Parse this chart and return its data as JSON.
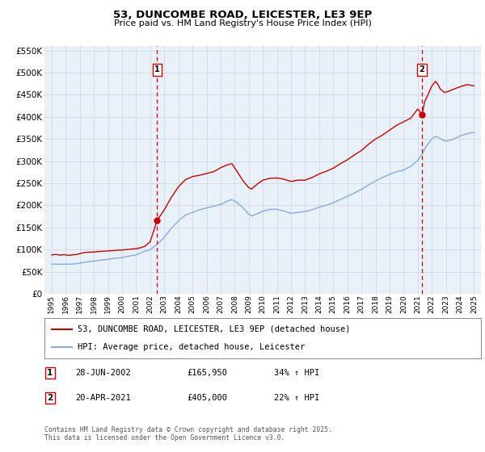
{
  "title": "53, DUNCOMBE ROAD, LEICESTER, LE3 9EP",
  "subtitle": "Price paid vs. HM Land Registry's House Price Index (HPI)",
  "ylim": [
    0,
    560000
  ],
  "yticks": [
    0,
    50000,
    100000,
    150000,
    200000,
    250000,
    300000,
    350000,
    400000,
    450000,
    500000,
    550000
  ],
  "ytick_labels": [
    "£0",
    "£50K",
    "£100K",
    "£150K",
    "£200K",
    "£250K",
    "£300K",
    "£350K",
    "£400K",
    "£450K",
    "£500K",
    "£550K"
  ],
  "xlim": [
    1994.5,
    2025.5
  ],
  "xticks": [
    1995,
    1996,
    1997,
    1998,
    1999,
    2000,
    2001,
    2002,
    2003,
    2004,
    2005,
    2006,
    2007,
    2008,
    2009,
    2010,
    2011,
    2012,
    2013,
    2014,
    2015,
    2016,
    2017,
    2018,
    2019,
    2020,
    2021,
    2022,
    2023,
    2024,
    2025
  ],
  "red_line_color": "#cc0000",
  "blue_line_color": "#88aadd",
  "grid_color": "#d0dce8",
  "background_color": "#ffffff",
  "plot_bg_color": "#e8f0f8",
  "marker1_x": 2002.49,
  "marker1_y": 165950,
  "marker2_x": 2021.3,
  "marker2_y": 405000,
  "vline1_x": 2002.49,
  "vline2_x": 2021.3,
  "legend_label_red": "53, DUNCOMBE ROAD, LEICESTER, LE3 9EP (detached house)",
  "legend_label_blue": "HPI: Average price, detached house, Leicester",
  "table_row1": [
    "1",
    "28-JUN-2002",
    "£165,950",
    "34% ↑ HPI"
  ],
  "table_row2": [
    "2",
    "20-APR-2021",
    "£405,000",
    "22% ↑ HPI"
  ],
  "footer": "Contains HM Land Registry data © Crown copyright and database right 2025.\nThis data is licensed under the Open Government Licence v3.0.",
  "red_data": [
    [
      1995.0,
      88000
    ],
    [
      1995.3,
      89000
    ],
    [
      1995.6,
      87500
    ],
    [
      1995.9,
      88500
    ],
    [
      1996.2,
      87000
    ],
    [
      1996.5,
      88000
    ],
    [
      1996.8,
      89000
    ],
    [
      1997.0,
      91000
    ],
    [
      1997.3,
      93000
    ],
    [
      1997.6,
      94000
    ],
    [
      1998.0,
      94500
    ],
    [
      1998.3,
      95500
    ],
    [
      1998.6,
      96000
    ],
    [
      1999.0,
      97000
    ],
    [
      1999.3,
      97500
    ],
    [
      1999.6,
      98500
    ],
    [
      2000.0,
      99000
    ],
    [
      2000.3,
      100000
    ],
    [
      2000.6,
      101000
    ],
    [
      2001.0,
      102000
    ],
    [
      2001.3,
      104000
    ],
    [
      2001.6,
      107000
    ],
    [
      2002.0,
      118000
    ],
    [
      2002.49,
      165950
    ],
    [
      2003.0,
      190000
    ],
    [
      2003.5,
      218000
    ],
    [
      2004.0,
      242000
    ],
    [
      2004.5,
      258000
    ],
    [
      2005.0,
      265000
    ],
    [
      2005.5,
      268000
    ],
    [
      2006.0,
      272000
    ],
    [
      2006.5,
      276000
    ],
    [
      2007.0,
      285000
    ],
    [
      2007.5,
      292000
    ],
    [
      2007.8,
      294000
    ],
    [
      2008.2,
      275000
    ],
    [
      2008.6,
      255000
    ],
    [
      2009.0,
      240000
    ],
    [
      2009.2,
      237000
    ],
    [
      2009.6,
      248000
    ],
    [
      2010.0,
      257000
    ],
    [
      2010.5,
      261000
    ],
    [
      2011.0,
      262000
    ],
    [
      2011.5,
      259000
    ],
    [
      2012.0,
      254000
    ],
    [
      2012.5,
      257000
    ],
    [
      2013.0,
      257000
    ],
    [
      2013.5,
      263000
    ],
    [
      2014.0,
      271000
    ],
    [
      2014.5,
      277000
    ],
    [
      2015.0,
      284000
    ],
    [
      2015.5,
      294000
    ],
    [
      2016.0,
      303000
    ],
    [
      2016.5,
      314000
    ],
    [
      2017.0,
      324000
    ],
    [
      2017.5,
      338000
    ],
    [
      2018.0,
      350000
    ],
    [
      2018.5,
      359000
    ],
    [
      2019.0,
      370000
    ],
    [
      2019.5,
      381000
    ],
    [
      2020.0,
      389000
    ],
    [
      2020.5,
      397000
    ],
    [
      2021.0,
      418000
    ],
    [
      2021.3,
      405000
    ],
    [
      2021.5,
      435000
    ],
    [
      2021.75,
      452000
    ],
    [
      2022.0,
      470000
    ],
    [
      2022.25,
      480000
    ],
    [
      2022.4,
      475000
    ],
    [
      2022.6,
      463000
    ],
    [
      2022.9,
      455000
    ],
    [
      2023.2,
      458000
    ],
    [
      2023.5,
      462000
    ],
    [
      2024.0,
      468000
    ],
    [
      2024.5,
      473000
    ],
    [
      2025.0,
      470000
    ]
  ],
  "blue_data": [
    [
      1995.0,
      67000
    ],
    [
      1995.3,
      67200
    ],
    [
      1995.6,
      66800
    ],
    [
      1995.9,
      67100
    ],
    [
      1996.2,
      66900
    ],
    [
      1996.5,
      67300
    ],
    [
      1996.8,
      68000
    ],
    [
      1997.0,
      69500
    ],
    [
      1997.3,
      71000
    ],
    [
      1997.6,
      72500
    ],
    [
      1998.0,
      74000
    ],
    [
      1998.3,
      75500
    ],
    [
      1998.6,
      76500
    ],
    [
      1999.0,
      78000
    ],
    [
      1999.3,
      79500
    ],
    [
      1999.6,
      80500
    ],
    [
      2000.0,
      82000
    ],
    [
      2000.3,
      84000
    ],
    [
      2000.6,
      86000
    ],
    [
      2001.0,
      88000
    ],
    [
      2001.3,
      92000
    ],
    [
      2001.6,
      96000
    ],
    [
      2002.0,
      100000
    ],
    [
      2002.5,
      112000
    ],
    [
      2003.0,
      128000
    ],
    [
      2003.5,
      148000
    ],
    [
      2004.0,
      165000
    ],
    [
      2004.5,
      178000
    ],
    [
      2005.0,
      184000
    ],
    [
      2005.5,
      190000
    ],
    [
      2006.0,
      194000
    ],
    [
      2006.5,
      198000
    ],
    [
      2007.0,
      202000
    ],
    [
      2007.5,
      210000
    ],
    [
      2007.8,
      213000
    ],
    [
      2008.2,
      206000
    ],
    [
      2008.6,
      194000
    ],
    [
      2009.0,
      180000
    ],
    [
      2009.2,
      176000
    ],
    [
      2009.6,
      181000
    ],
    [
      2010.0,
      187000
    ],
    [
      2010.5,
      191000
    ],
    [
      2011.0,
      191000
    ],
    [
      2011.5,
      187000
    ],
    [
      2012.0,
      182000
    ],
    [
      2012.5,
      184000
    ],
    [
      2013.0,
      186000
    ],
    [
      2013.5,
      190000
    ],
    [
      2014.0,
      196000
    ],
    [
      2014.5,
      200000
    ],
    [
      2015.0,
      206000
    ],
    [
      2015.5,
      213000
    ],
    [
      2016.0,
      220000
    ],
    [
      2016.5,
      228000
    ],
    [
      2017.0,
      236000
    ],
    [
      2017.5,
      246000
    ],
    [
      2018.0,
      255000
    ],
    [
      2018.5,
      263000
    ],
    [
      2019.0,
      270000
    ],
    [
      2019.5,
      276000
    ],
    [
      2020.0,
      280000
    ],
    [
      2020.5,
      288000
    ],
    [
      2021.0,
      302000
    ],
    [
      2021.3,
      315000
    ],
    [
      2021.5,
      328000
    ],
    [
      2021.75,
      340000
    ],
    [
      2022.0,
      350000
    ],
    [
      2022.25,
      356000
    ],
    [
      2022.5,
      353000
    ],
    [
      2022.75,
      348000
    ],
    [
      2023.0,
      345000
    ],
    [
      2023.5,
      349000
    ],
    [
      2024.0,
      357000
    ],
    [
      2024.5,
      362000
    ],
    [
      2025.0,
      365000
    ]
  ]
}
